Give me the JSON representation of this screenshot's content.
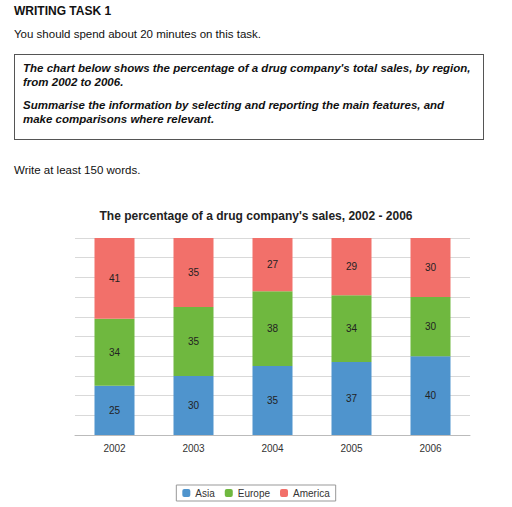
{
  "header": {
    "title": "WRITING TASK 1",
    "instruction": "You should spend about 20 minutes on this task.",
    "prompt": [
      "The chart below shows the percentage of a drug company's total sales, by region, from 2002 to 2006.",
      "Summarise the information by selecting and reporting the main features, and make comparisons where relevant."
    ],
    "word_count": "Write at least 150 words."
  },
  "chart_data": {
    "type": "bar",
    "title": "The percentage of a drug company's sales, 2002 - 2006",
    "categories": [
      "2002",
      "2003",
      "2004",
      "2005",
      "2006"
    ],
    "series": [
      {
        "name": "Asia",
        "color": "#4f94cd",
        "values": [
          25,
          30,
          35,
          37,
          40
        ]
      },
      {
        "name": "Europe",
        "color": "#6fb83f",
        "values": [
          34,
          35,
          38,
          34,
          30
        ]
      },
      {
        "name": "America",
        "color": "#f2706a",
        "values": [
          41,
          35,
          27,
          29,
          30
        ]
      }
    ],
    "stacked": true,
    "data_labels": true,
    "tick_labels": "x",
    "grid": true,
    "legend": "bottom",
    "ylim": [
      0,
      100
    ],
    "yticks": [
      0,
      10,
      20,
      30,
      40,
      50,
      60,
      70,
      80,
      90,
      100
    ]
  }
}
